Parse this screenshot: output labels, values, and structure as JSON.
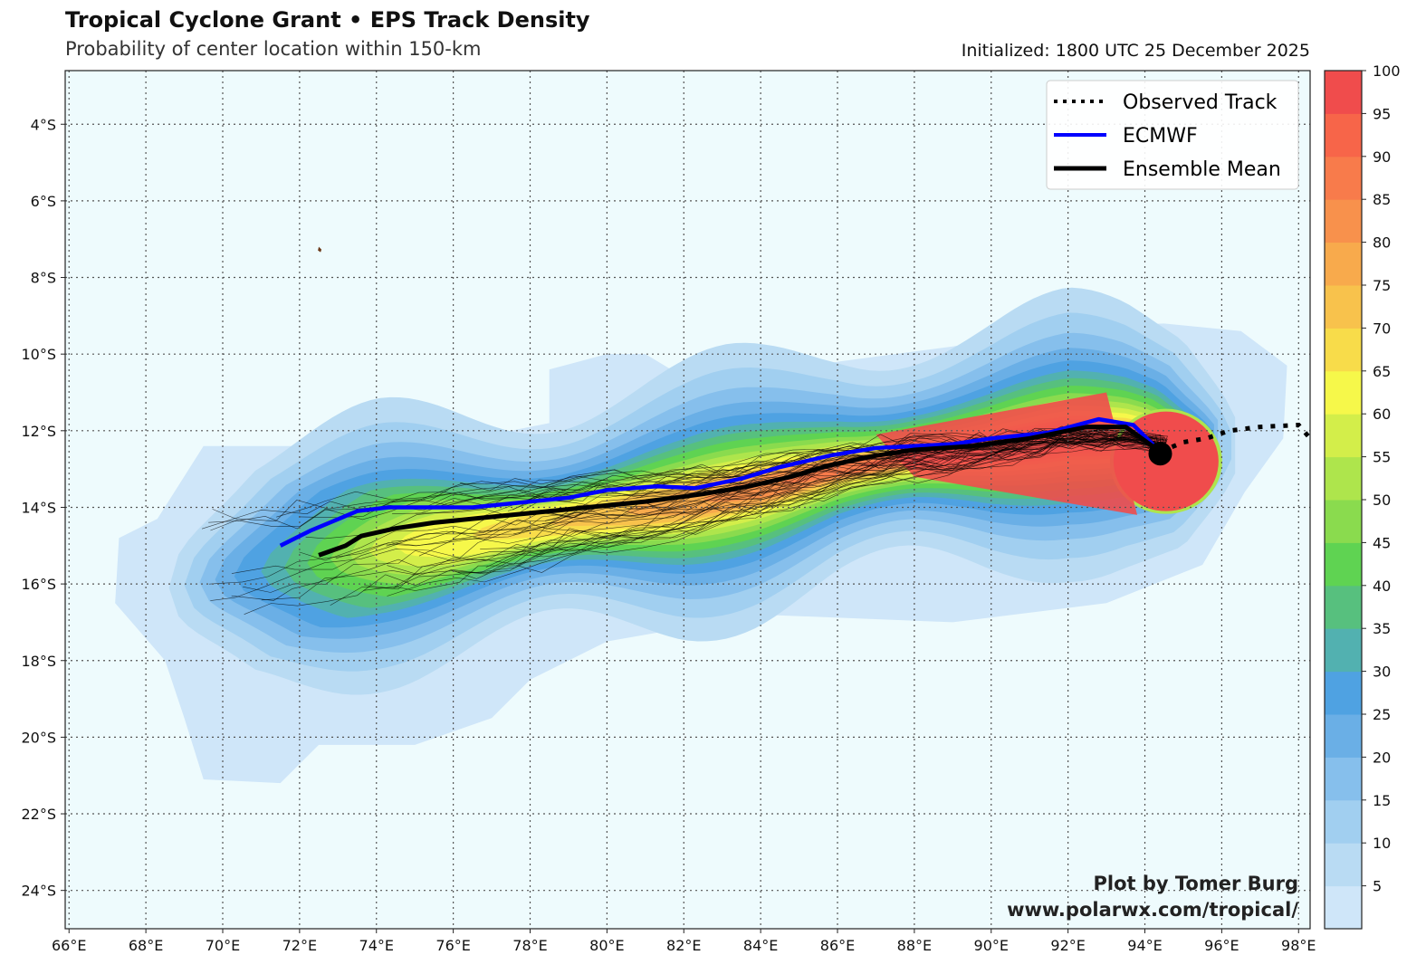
{
  "header": {
    "title": "Tropical Cyclone Grant • EPS Track Density",
    "subtitle": "Probability of center location within 150-km",
    "initialized": "Initialized: 1800 UTC 25 December 2025"
  },
  "legend": {
    "items": [
      {
        "label": "Observed Track",
        "style": "dotted",
        "color": "#000000"
      },
      {
        "label": "ECMWF",
        "style": "solid",
        "color": "#0000ff"
      },
      {
        "label": "Ensemble Mean",
        "style": "solid",
        "color": "#000000"
      }
    ]
  },
  "credit": {
    "line1": "Plot by Tomer Burg",
    "line2": "www.polarwx.com/tropical/"
  },
  "chart_data": {
    "type": "heatmap",
    "title": "Tropical Cyclone Grant • EPS Track Density",
    "lon_range": [
      65.9,
      98.3
    ],
    "lat_range": [
      -25.0,
      -2.6
    ],
    "grid": true,
    "legend_placement": "top-right",
    "x_ticks": [
      "66°E",
      "68°E",
      "70°E",
      "72°E",
      "74°E",
      "76°E",
      "78°E",
      "80°E",
      "82°E",
      "84°E",
      "86°E",
      "88°E",
      "90°E",
      "92°E",
      "94°E",
      "96°E",
      "98°E"
    ],
    "x_tick_values": [
      66,
      68,
      70,
      72,
      74,
      76,
      78,
      80,
      82,
      84,
      86,
      88,
      90,
      92,
      94,
      96,
      98
    ],
    "y_ticks": [
      "4°S",
      "6°S",
      "8°S",
      "10°S",
      "12°S",
      "14°S",
      "16°S",
      "18°S",
      "20°S",
      "22°S",
      "24°S"
    ],
    "y_tick_values": [
      -4,
      -6,
      -8,
      -10,
      -12,
      -14,
      -16,
      -18,
      -20,
      -22,
      -24
    ],
    "colorbar": {
      "levels": [
        0,
        5,
        10,
        15,
        20,
        25,
        30,
        35,
        40,
        45,
        50,
        55,
        60,
        65,
        70,
        75,
        80,
        85,
        90,
        95,
        100
      ],
      "tick_labels": [
        "5",
        "10",
        "15",
        "20",
        "25",
        "30",
        "35",
        "40",
        "45",
        "50",
        "55",
        "60",
        "65",
        "70",
        "75",
        "80",
        "85",
        "90",
        "95",
        "100"
      ],
      "colors": [
        "#cfe6f9",
        "#b9dbf3",
        "#a1cff0",
        "#86bfec",
        "#6aafe6",
        "#4fa2e2",
        "#52b1b0",
        "#57c07e",
        "#5fd352",
        "#8adb4e",
        "#aee54c",
        "#d3ee4a",
        "#f6f84a",
        "#f8dc4a",
        "#f8c24c",
        "#f8aa4c",
        "#f8914c",
        "#f87b4b",
        "#f76549",
        "#f04c4c"
      ]
    },
    "ocean_color": "#eefbfd",
    "ecmwf_track": [
      [
        71.5,
        -15.0
      ],
      [
        72.3,
        -14.6
      ],
      [
        73.5,
        -14.1
      ],
      [
        74.3,
        -14.0
      ],
      [
        76.5,
        -14.0
      ],
      [
        78,
        -13.85
      ],
      [
        79,
        -13.75
      ],
      [
        80,
        -13.55
      ],
      [
        81.3,
        -13.45
      ],
      [
        82.3,
        -13.5
      ],
      [
        83.5,
        -13.25
      ],
      [
        84.5,
        -12.95
      ],
      [
        85.8,
        -12.65
      ],
      [
        87,
        -12.45
      ],
      [
        88,
        -12.4
      ],
      [
        89,
        -12.35
      ],
      [
        90,
        -12.2
      ],
      [
        91.5,
        -12.05
      ],
      [
        92.8,
        -11.7
      ],
      [
        93.7,
        -11.85
      ],
      [
        94.4,
        -12.55
      ]
    ],
    "ensemble_mean_track": [
      [
        72.5,
        -15.25
      ],
      [
        73.2,
        -15.0
      ],
      [
        73.6,
        -14.75
      ],
      [
        74.5,
        -14.55
      ],
      [
        75.5,
        -14.4
      ],
      [
        77,
        -14.25
      ],
      [
        78.5,
        -14.1
      ],
      [
        79.5,
        -14.0
      ],
      [
        81,
        -13.85
      ],
      [
        82.5,
        -13.65
      ],
      [
        83.7,
        -13.45
      ],
      [
        84.8,
        -13.2
      ],
      [
        85.8,
        -12.9
      ],
      [
        87,
        -12.65
      ],
      [
        88,
        -12.5
      ],
      [
        89.5,
        -12.4
      ],
      [
        91,
        -12.2
      ],
      [
        92.5,
        -11.9
      ],
      [
        93.5,
        -11.9
      ],
      [
        94.4,
        -12.55
      ]
    ],
    "observed_track": [
      [
        94.4,
        -12.55
      ],
      [
        95.0,
        -12.3
      ],
      [
        95.6,
        -12.2
      ],
      [
        96.2,
        -12.0
      ],
      [
        97.0,
        -11.9
      ],
      [
        98.0,
        -11.85
      ],
      [
        98.3,
        -12.2
      ]
    ],
    "current_position": [
      94.4,
      -12.6
    ]
  }
}
